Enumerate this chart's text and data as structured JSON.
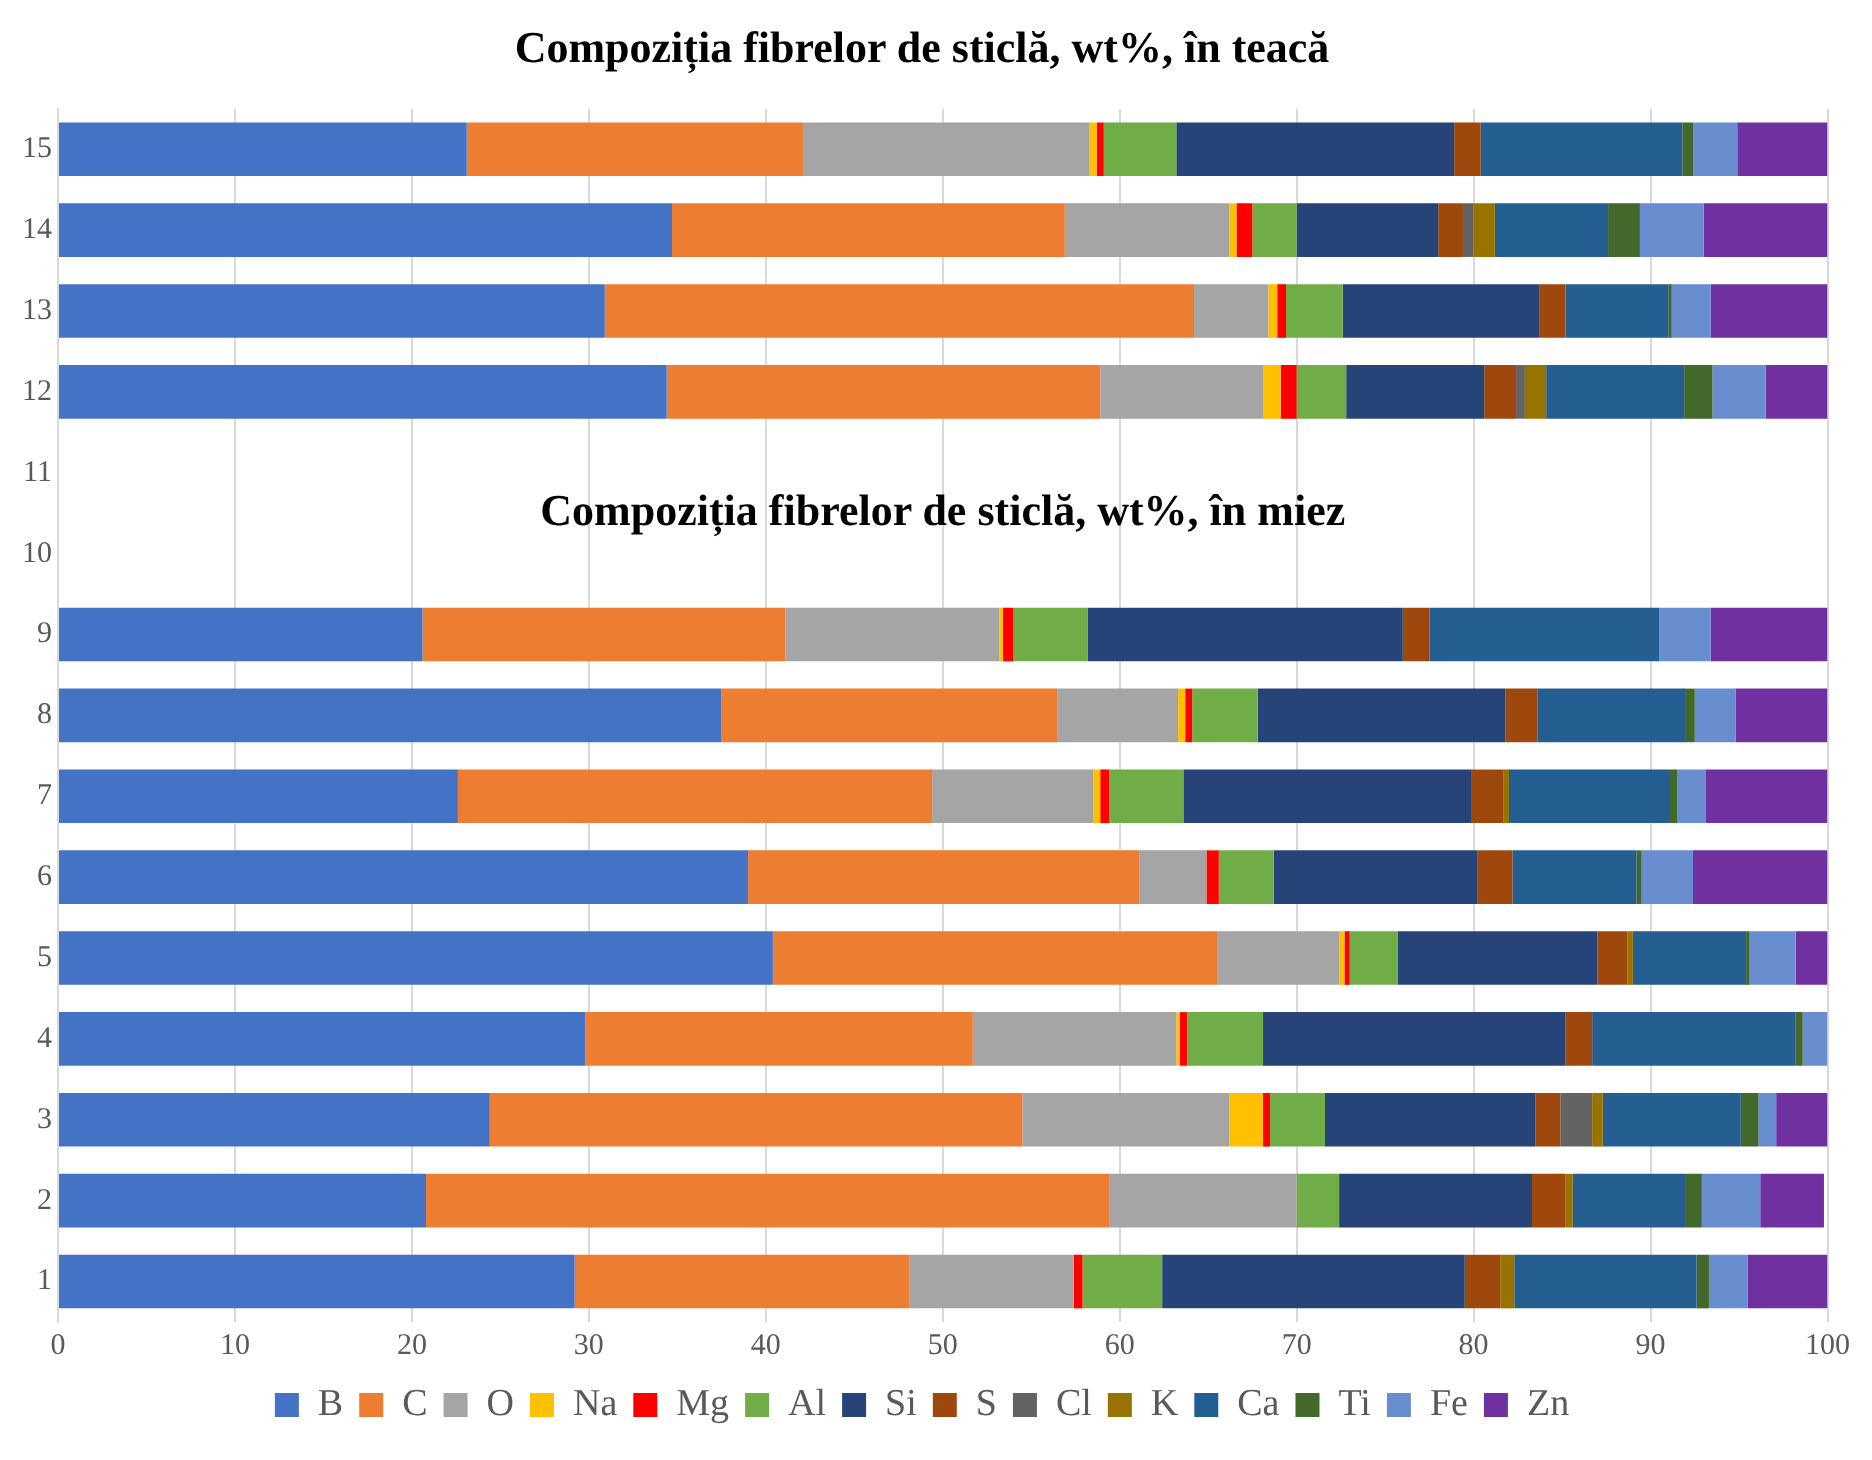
{
  "chart_data": {
    "type": "bar",
    "orientation": "horizontal",
    "stacked": true,
    "title": "Compoziția fibrelor de sticlă, wt%, în teacă",
    "annotations": [
      "Compoziția fibrelor de sticlă, wt%, în miez"
    ],
    "categories": [
      "15",
      "14",
      "13",
      "12",
      "11",
      "10",
      "9",
      "8",
      "7",
      "6",
      "5",
      "4",
      "3",
      "2",
      "1"
    ],
    "series": [
      {
        "name": "B",
        "color": "#4472c4",
        "values": [
          23.1,
          34.7,
          30.9,
          34.4,
          null,
          null,
          20.6,
          37.5,
          22.6,
          39.0,
          40.4,
          29.8,
          24.4,
          20.8,
          29.2
        ]
      },
      {
        "name": "C",
        "color": "#ed7d31",
        "values": [
          19.0,
          22.2,
          33.3,
          24.5,
          null,
          null,
          20.5,
          19.0,
          26.8,
          22.1,
          25.1,
          21.9,
          30.1,
          38.6,
          18.9
        ]
      },
      {
        "name": "O",
        "color": "#a5a5a5",
        "values": [
          16.2,
          9.3,
          4.2,
          9.2,
          null,
          null,
          12.1,
          6.8,
          9.1,
          3.8,
          6.9,
          11.5,
          11.7,
          10.6,
          9.3
        ]
      },
      {
        "name": "Na",
        "color": "#ffc000",
        "values": [
          0.4,
          0.4,
          0.5,
          1.0,
          null,
          null,
          0.2,
          0.4,
          0.4,
          0,
          0.3,
          0.2,
          1.9,
          0,
          0
        ]
      },
      {
        "name": "Mg",
        "color": "#ff0000",
        "values": [
          0.4,
          0.9,
          0.5,
          0.9,
          null,
          null,
          0.6,
          0.4,
          0.5,
          0.7,
          0.3,
          0.4,
          0.4,
          0,
          0.5
        ]
      },
      {
        "name": "Al",
        "color": "#70ad47",
        "values": [
          4.1,
          2.5,
          3.2,
          2.8,
          null,
          null,
          4.2,
          3.7,
          4.2,
          3.1,
          2.7,
          4.3,
          3.1,
          2.4,
          4.5
        ]
      },
      {
        "name": "Si",
        "color": "#264478",
        "values": [
          15.7,
          8.0,
          11.1,
          7.8,
          null,
          null,
          17.8,
          14.0,
          16.3,
          11.5,
          11.3,
          17.1,
          11.9,
          10.9,
          17.1
        ]
      },
      {
        "name": "S",
        "color": "#9e480e",
        "values": [
          1.5,
          1.4,
          1.5,
          1.8,
          null,
          null,
          1.5,
          1.8,
          1.8,
          2.0,
          1.7,
          1.5,
          1.4,
          1.9,
          2.0
        ]
      },
      {
        "name": "Cl",
        "color": "#636363",
        "values": [
          0,
          0.6,
          0,
          0.5,
          null,
          null,
          0,
          0,
          0,
          0,
          0,
          0,
          1.8,
          0,
          0
        ]
      },
      {
        "name": "K",
        "color": "#997300",
        "values": [
          0,
          1.2,
          0,
          1.2,
          null,
          null,
          0,
          0,
          0.3,
          0,
          0.3,
          0,
          0.6,
          0.4,
          0.8
        ]
      },
      {
        "name": "Ca",
        "color": "#255e91",
        "values": [
          11.4,
          6.4,
          5.8,
          7.8,
          null,
          null,
          13.0,
          8.4,
          9.1,
          7.0,
          6.4,
          11.5,
          7.8,
          6.4,
          10.3
        ]
      },
      {
        "name": "Ti",
        "color": "#43682b",
        "values": [
          0.6,
          1.8,
          0.2,
          1.6,
          null,
          null,
          0,
          0.5,
          0.4,
          0.3,
          0.2,
          0.4,
          1.0,
          0.9,
          0.7
        ]
      },
      {
        "name": "Fe",
        "color": "#698ed0",
        "values": [
          2.5,
          3.6,
          2.2,
          3.0,
          null,
          null,
          2.9,
          2.3,
          1.6,
          2.9,
          2.6,
          1.4,
          1.0,
          3.3,
          2.2
        ]
      },
      {
        "name": "Zn",
        "color": "#7030a0",
        "values": [
          5.1,
          7.0,
          6.6,
          3.5,
          null,
          null,
          6.6,
          5.2,
          6.9,
          7.6,
          1.8,
          0,
          2.9,
          3.6,
          4.5
        ]
      }
    ],
    "xlim": [
      0,
      100
    ],
    "xticks": [
      0,
      10,
      20,
      30,
      40,
      50,
      60,
      70,
      80,
      90,
      100
    ],
    "grid": "x",
    "legend": "bottom"
  }
}
